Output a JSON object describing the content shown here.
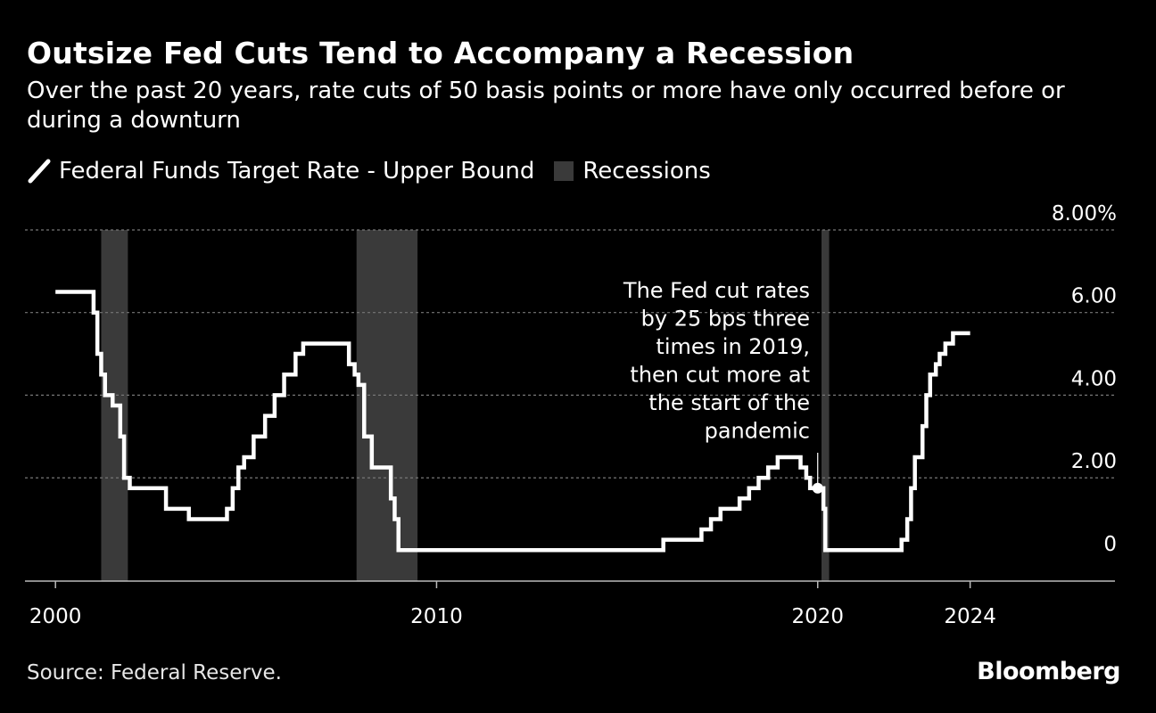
{
  "title": "Outsize Fed Cuts Tend to Accompany a Recession",
  "subtitle": "Over the past 20 years, rate cuts of 50 basis points or more have only occurred before or during a downturn",
  "source": "Source: Federal Reserve.",
  "logo": "Bloomberg",
  "chart_data": {
    "type": "line",
    "title": "Outsize Fed Cuts Tend to Accompany a Recession",
    "xlabel": "",
    "ylabel": "",
    "xlim": [
      1999.2,
      2027.8
    ],
    "ylim": [
      -0.5,
      8
    ],
    "x_ticks": [
      2000,
      2010,
      2020,
      2024
    ],
    "x_tick_labels": [
      "2000",
      "2010",
      "2020",
      "2024"
    ],
    "y_ticks": [
      0,
      2,
      4,
      6,
      8
    ],
    "y_tick_labels": [
      "0",
      "2.00",
      "4.00",
      "6.00",
      "8.00%"
    ],
    "grid": "horizontal dotted",
    "legend_position": "top-left",
    "colors": {
      "line": "#ffffff",
      "recession": "#3a3a3a",
      "grid": "#777777",
      "background": "#000000"
    },
    "recessions": [
      {
        "name": "Recessions",
        "start": 2001.2,
        "end": 2001.9
      },
      {
        "name": "Recessions",
        "start": 2007.9,
        "end": 2009.5
      },
      {
        "name": "Recessions",
        "start": 2020.1,
        "end": 2020.3
      }
    ],
    "series": [
      {
        "name": "Federal Funds Target Rate - Upper Bound",
        "points": [
          [
            2000.0,
            6.5
          ],
          [
            2000.6,
            6.5
          ],
          [
            2001.0,
            6.0
          ],
          [
            2001.1,
            5.0
          ],
          [
            2001.2,
            4.5
          ],
          [
            2001.3,
            4.0
          ],
          [
            2001.5,
            3.75
          ],
          [
            2001.7,
            3.0
          ],
          [
            2001.8,
            2.0
          ],
          [
            2001.95,
            1.75
          ],
          [
            2002.9,
            1.25
          ],
          [
            2003.5,
            1.0
          ],
          [
            2004.5,
            1.25
          ],
          [
            2004.65,
            1.75
          ],
          [
            2004.8,
            2.25
          ],
          [
            2004.95,
            2.5
          ],
          [
            2005.2,
            3.0
          ],
          [
            2005.5,
            3.5
          ],
          [
            2005.75,
            4.0
          ],
          [
            2006.0,
            4.5
          ],
          [
            2006.3,
            5.0
          ],
          [
            2006.5,
            5.25
          ],
          [
            2007.7,
            4.75
          ],
          [
            2007.85,
            4.5
          ],
          [
            2007.95,
            4.25
          ],
          [
            2008.1,
            3.0
          ],
          [
            2008.3,
            2.25
          ],
          [
            2008.8,
            1.5
          ],
          [
            2008.9,
            1.0
          ],
          [
            2009.0,
            0.25
          ],
          [
            2015.95,
            0.5
          ],
          [
            2016.95,
            0.75
          ],
          [
            2017.2,
            1.0
          ],
          [
            2017.45,
            1.25
          ],
          [
            2017.95,
            1.5
          ],
          [
            2018.2,
            1.75
          ],
          [
            2018.45,
            2.0
          ],
          [
            2018.7,
            2.25
          ],
          [
            2018.95,
            2.5
          ],
          [
            2019.55,
            2.25
          ],
          [
            2019.7,
            2.0
          ],
          [
            2019.8,
            1.75
          ],
          [
            2020.15,
            1.25
          ],
          [
            2020.2,
            0.25
          ],
          [
            2022.2,
            0.5
          ],
          [
            2022.35,
            1.0
          ],
          [
            2022.45,
            1.75
          ],
          [
            2022.55,
            2.5
          ],
          [
            2022.75,
            3.25
          ],
          [
            2022.85,
            4.0
          ],
          [
            2022.95,
            4.5
          ],
          [
            2023.1,
            4.75
          ],
          [
            2023.2,
            5.0
          ],
          [
            2023.35,
            5.25
          ],
          [
            2023.55,
            5.5
          ],
          [
            2024.0,
            5.5
          ]
        ]
      }
    ],
    "annotation": {
      "text_lines": [
        "The Fed cut rates",
        "by 25 bps three",
        "times in 2019,",
        "then cut more at",
        "the start of the",
        "pandemic"
      ],
      "x": 2020.0,
      "y": 1.75
    }
  }
}
